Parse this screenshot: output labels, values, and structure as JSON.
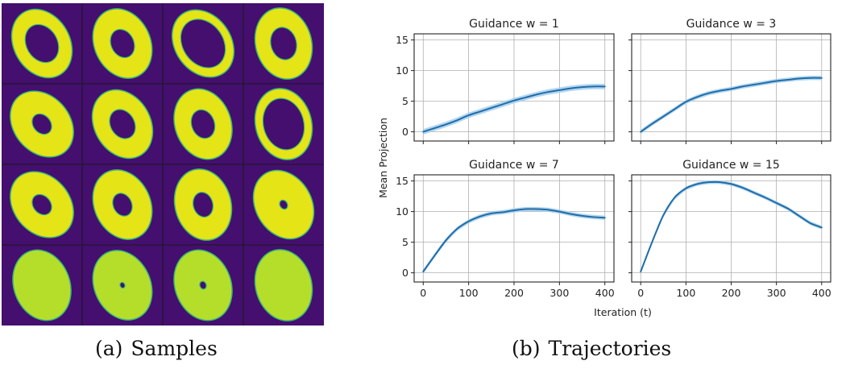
{
  "captions": {
    "a": {
      "tag": "(a)",
      "text": "Samples"
    },
    "b": {
      "tag": "(b)",
      "text": "Trajectories"
    }
  },
  "samples_grid": {
    "rows": 4,
    "cols": 4,
    "background_color": "#440f6e",
    "colors": {
      "ring": "#e4e417",
      "ring_last_row": "#b5de2b",
      "edge": "#35b779",
      "grid_line": "#1a1a1a"
    },
    "cells": [
      {
        "row": 0,
        "col": 0,
        "fill": "ring",
        "thickness": 0.28,
        "hole": 0.55,
        "rot": -30
      },
      {
        "row": 0,
        "col": 1,
        "fill": "ring",
        "thickness": 0.42,
        "hole": 0.4,
        "rot": -25
      },
      {
        "row": 0,
        "col": 2,
        "fill": "ring",
        "thickness": 0.14,
        "hole": 0.72,
        "rot": -35
      },
      {
        "row": 0,
        "col": 3,
        "fill": "ring",
        "thickness": 0.38,
        "hole": 0.45,
        "rot": -15
      },
      {
        "row": 1,
        "col": 0,
        "fill": "ring",
        "thickness": 0.5,
        "hole": 0.3,
        "rot": -40
      },
      {
        "row": 1,
        "col": 1,
        "fill": "ring",
        "thickness": 0.42,
        "hole": 0.42,
        "rot": -30
      },
      {
        "row": 1,
        "col": 2,
        "fill": "ring",
        "thickness": 0.42,
        "hole": 0.4,
        "rot": -20
      },
      {
        "row": 1,
        "col": 3,
        "fill": "ring",
        "thickness": 0.14,
        "hole": 0.72,
        "rot": -15
      },
      {
        "row": 2,
        "col": 0,
        "fill": "ring",
        "thickness": 0.52,
        "hole": 0.3,
        "rot": -40
      },
      {
        "row": 2,
        "col": 1,
        "fill": "ring",
        "thickness": 0.48,
        "hole": 0.32,
        "rot": -25
      },
      {
        "row": 2,
        "col": 2,
        "fill": "ring",
        "thickness": 0.46,
        "hole": 0.34,
        "rot": -15
      },
      {
        "row": 2,
        "col": 3,
        "fill": "ring",
        "thickness": 0.78,
        "hole": 0.12,
        "rot": -30
      },
      {
        "row": 3,
        "col": 0,
        "fill": "ring_last_row",
        "thickness": 1.0,
        "hole": 0.0,
        "rot": -20
      },
      {
        "row": 3,
        "col": 1,
        "fill": "ring_last_row",
        "thickness": 0.9,
        "hole": 0.07,
        "rot": -25
      },
      {
        "row": 3,
        "col": 2,
        "fill": "ring_last_row",
        "thickness": 0.85,
        "hole": 0.1,
        "rot": -20
      },
      {
        "row": 3,
        "col": 3,
        "fill": "ring_last_row",
        "thickness": 1.0,
        "hole": 0.0,
        "rot": -15
      }
    ]
  },
  "chart_data": [
    {
      "type": "line",
      "title": "Guidance w = 1",
      "x": [
        0,
        25,
        50,
        75,
        100,
        125,
        150,
        175,
        200,
        225,
        250,
        275,
        300,
        325,
        350,
        375,
        400
      ],
      "y": [
        0.0,
        0.6,
        1.2,
        1.9,
        2.7,
        3.3,
        3.9,
        4.5,
        5.1,
        5.6,
        6.1,
        6.5,
        6.8,
        7.1,
        7.3,
        7.4,
        7.4
      ],
      "band": 0.45,
      "xlim": [
        -20,
        420
      ],
      "ylim": [
        -1.5,
        16
      ],
      "xticks": [
        0,
        100,
        200,
        300,
        400
      ],
      "yticks": [
        0,
        5,
        10,
        15
      ],
      "xticklabels": false,
      "yticklabels": true,
      "grid": true
    },
    {
      "type": "line",
      "title": "Guidance w = 3",
      "x": [
        0,
        25,
        50,
        75,
        100,
        125,
        150,
        175,
        200,
        225,
        250,
        275,
        300,
        325,
        350,
        375,
        400
      ],
      "y": [
        0.0,
        1.3,
        2.5,
        3.7,
        4.9,
        5.7,
        6.3,
        6.7,
        7.0,
        7.4,
        7.7,
        8.0,
        8.3,
        8.5,
        8.7,
        8.8,
        8.8
      ],
      "band": 0.35,
      "xlim": [
        -20,
        420
      ],
      "ylim": [
        -1.5,
        16
      ],
      "xticks": [
        0,
        100,
        200,
        300,
        400
      ],
      "yticks": [
        0,
        5,
        10,
        15
      ],
      "xticklabels": false,
      "yticklabels": false,
      "grid": true
    },
    {
      "type": "line",
      "title": "Guidance w = 7",
      "x": [
        0,
        25,
        50,
        75,
        100,
        125,
        150,
        175,
        200,
        225,
        250,
        275,
        300,
        325,
        350,
        375,
        400
      ],
      "y": [
        0.2,
        2.8,
        5.3,
        7.2,
        8.4,
        9.2,
        9.7,
        9.9,
        10.2,
        10.4,
        10.4,
        10.3,
        10.0,
        9.6,
        9.3,
        9.1,
        9.0
      ],
      "band": 0.35,
      "xlim": [
        -20,
        420
      ],
      "ylim": [
        -1.5,
        16
      ],
      "xticks": [
        0,
        100,
        200,
        300,
        400
      ],
      "yticks": [
        0,
        5,
        10,
        15
      ],
      "xticklabels": true,
      "yticklabels": true,
      "grid": true
    },
    {
      "type": "line",
      "title": "Guidance w = 15",
      "x": [
        0,
        25,
        50,
        75,
        100,
        125,
        150,
        175,
        200,
        225,
        250,
        275,
        300,
        325,
        350,
        375,
        400
      ],
      "y": [
        0.2,
        5.0,
        9.4,
        12.3,
        13.8,
        14.5,
        14.8,
        14.8,
        14.5,
        13.9,
        13.1,
        12.3,
        11.4,
        10.5,
        9.3,
        8.1,
        7.4
      ],
      "band": 0.3,
      "xlim": [
        -20,
        420
      ],
      "ylim": [
        -1.5,
        16
      ],
      "xticks": [
        0,
        100,
        200,
        300,
        400
      ],
      "yticks": [
        0,
        5,
        10,
        15
      ],
      "xticklabels": true,
      "yticklabels": false,
      "grid": true
    }
  ],
  "shared_axes": {
    "xlabel": "Iteration (t)",
    "ylabel": "Mean Projection"
  },
  "colors": {
    "line": "#1f6da8",
    "band": "#a6cfee",
    "grid": "#b0b0b0",
    "axis": "#222222",
    "text": "#222222"
  }
}
